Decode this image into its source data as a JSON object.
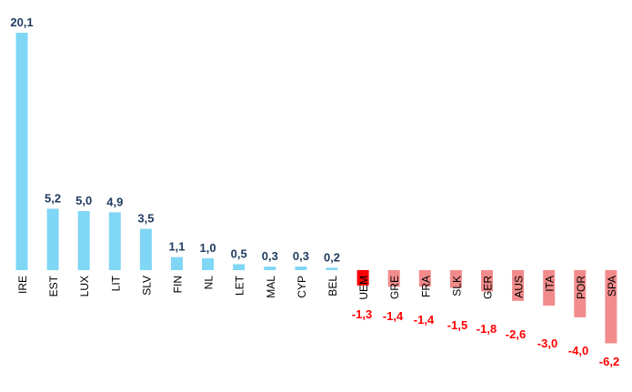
{
  "chart_data": {
    "type": "bar",
    "categories": [
      "IRE",
      "EST",
      "LUX",
      "LIT",
      "SLV",
      "FIN",
      "NL",
      "LET",
      "MAL",
      "CYP",
      "BEL",
      "UEM",
      "GRE",
      "FRA",
      "SLK",
      "GER",
      "AUS",
      "ITA",
      "POR",
      "SPA"
    ],
    "values": [
      20.1,
      5.2,
      5.0,
      4.9,
      3.5,
      1.1,
      1.0,
      0.5,
      0.3,
      0.3,
      0.2,
      -1.3,
      -1.4,
      -1.4,
      -1.5,
      -1.8,
      -2.6,
      -3.0,
      -4.0,
      -6.2
    ],
    "labels": [
      "20,1",
      "5,2",
      "5,0",
      "4,9",
      "3,5",
      "1,1",
      "1,0",
      "0,5",
      "0,3",
      "0,3",
      "0,2",
      "-1,3",
      "-1,4",
      "-1,4",
      "-1,5",
      "-1,8",
      "-2,6",
      "-3,0",
      "-4,0",
      "-6,2"
    ],
    "highlight": "UEM",
    "title": "",
    "xlabel": "",
    "ylabel": "",
    "grid": false,
    "legend": "none",
    "colors": {
      "positive": "#7fd6f5",
      "negative": "#f28b8b",
      "highlight": "#ff0000",
      "positive_label": "#1f3a5f",
      "negative_label": "#ff0000"
    }
  }
}
